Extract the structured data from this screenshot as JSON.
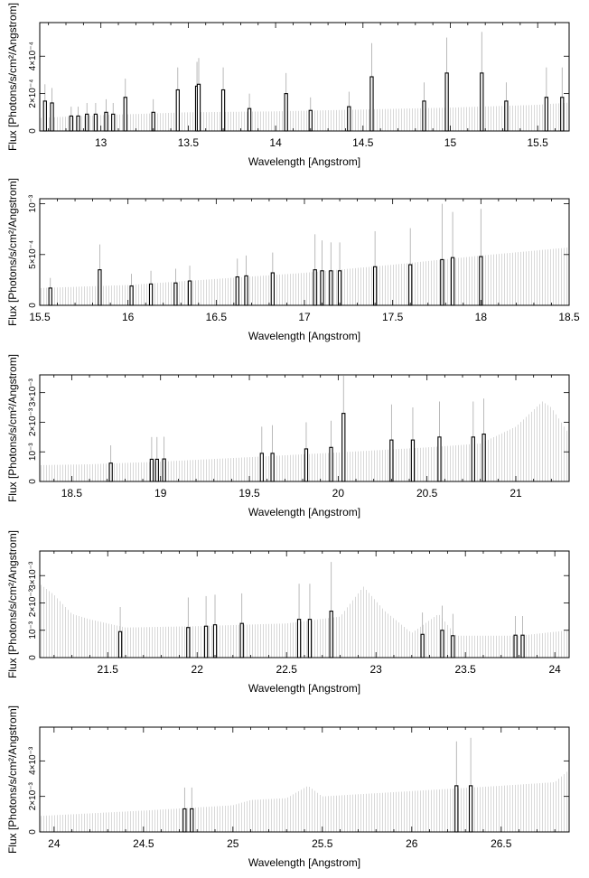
{
  "chart_data": [
    {
      "type": "bar",
      "xlabel": "Wavelength [Angstrom]",
      "ylabel": "Flux [Photons/s/cm²/Angstrom]",
      "xlim": [
        12.65,
        15.68
      ],
      "ylim": [
        0,
        0.00058
      ],
      "grid": false,
      "xticks": [
        {
          "v": 13,
          "label": "13"
        },
        {
          "v": 13.5,
          "label": "13.5"
        },
        {
          "v": 14,
          "label": "14"
        },
        {
          "v": 14.5,
          "label": "14.5"
        },
        {
          "v": 15,
          "label": "15"
        },
        {
          "v": 15.5,
          "label": "15.5"
        }
      ],
      "yticks": [
        {
          "v": 0,
          "label": "0"
        },
        {
          "v": 0.0002,
          "label": "2×10⁻⁴"
        },
        {
          "v": 0.0004,
          "label": "4×10⁻⁴"
        }
      ],
      "continuum": [
        [
          12.65,
          7e-05
        ],
        [
          13.0,
          8.5e-05
        ],
        [
          13.5,
          0.0001
        ],
        [
          14.0,
          0.000105
        ],
        [
          14.5,
          0.000115
        ],
        [
          15.0,
          0.000125
        ],
        [
          15.5,
          0.00014
        ],
        [
          15.68,
          0.000152
        ]
      ],
      "lines": [
        {
          "x": 12.68,
          "y": 0.00016,
          "err": 9e-05
        },
        {
          "x": 12.72,
          "y": 0.00015,
          "err": 8e-05
        },
        {
          "x": 12.83,
          "y": 8e-05,
          "err": 5e-05
        },
        {
          "x": 12.87,
          "y": 8e-05,
          "err": 5e-05
        },
        {
          "x": 12.92,
          "y": 9e-05,
          "err": 6e-05
        },
        {
          "x": 12.97,
          "y": 9e-05,
          "err": 6e-05
        },
        {
          "x": 13.03,
          "y": 0.0001,
          "err": 7e-05
        },
        {
          "x": 13.07,
          "y": 9e-05,
          "err": 6e-05
        },
        {
          "x": 13.14,
          "y": 0.00018,
          "err": 0.0001
        },
        {
          "x": 13.3,
          "y": 0.0001,
          "err": 7e-05
        },
        {
          "x": 13.44,
          "y": 0.00022,
          "err": 0.00012
        },
        {
          "x": 13.55,
          "y": 0.00024,
          "err": 0.00013
        },
        {
          "x": 13.56,
          "y": 0.00025,
          "err": 0.00014
        },
        {
          "x": 13.7,
          "y": 0.00022,
          "err": 0.00012
        },
        {
          "x": 13.85,
          "y": 0.00012,
          "err": 8e-05
        },
        {
          "x": 14.06,
          "y": 0.0002,
          "err": 0.00011
        },
        {
          "x": 14.2,
          "y": 0.00011,
          "err": 7e-05
        },
        {
          "x": 14.42,
          "y": 0.00013,
          "err": 8e-05
        },
        {
          "x": 14.55,
          "y": 0.00029,
          "err": 0.00018
        },
        {
          "x": 14.85,
          "y": 0.00016,
          "err": 0.0001
        },
        {
          "x": 14.98,
          "y": 0.00031,
          "err": 0.00019
        },
        {
          "x": 15.18,
          "y": 0.00031,
          "err": 0.00022
        },
        {
          "x": 15.32,
          "y": 0.00016,
          "err": 0.0001
        },
        {
          "x": 15.55,
          "y": 0.00018,
          "err": 0.00016
        },
        {
          "x": 15.64,
          "y": 0.00018,
          "err": 0.00016
        }
      ]
    },
    {
      "type": "bar",
      "xlabel": "Wavelength [Angstrom]",
      "ylabel": "Flux [Photons/s/cm²/Angstrom]",
      "xlim": [
        15.5,
        18.5
      ],
      "ylim": [
        0,
        0.00105
      ],
      "grid": false,
      "xticks": [
        {
          "v": 15.5,
          "label": "15.5"
        },
        {
          "v": 16,
          "label": "16"
        },
        {
          "v": 16.5,
          "label": "16.5"
        },
        {
          "v": 17,
          "label": "17"
        },
        {
          "v": 17.5,
          "label": "17.5"
        },
        {
          "v": 18,
          "label": "18"
        },
        {
          "v": 18.5,
          "label": "18.5"
        }
      ],
      "yticks": [
        {
          "v": 0,
          "label": "0"
        },
        {
          "v": 0.0005,
          "label": "5×10⁻⁴"
        },
        {
          "v": 0.001,
          "label": "10⁻³"
        }
      ],
      "continuum": [
        [
          15.5,
          0.00017
        ],
        [
          16.0,
          0.0002
        ],
        [
          16.5,
          0.00026
        ],
        [
          17.0,
          0.00032
        ],
        [
          17.5,
          0.0004
        ],
        [
          18.0,
          0.00049
        ],
        [
          18.5,
          0.00057
        ]
      ],
      "lines": [
        {
          "x": 15.56,
          "y": 0.00017,
          "err": 0.0001
        },
        {
          "x": 15.84,
          "y": 0.00035,
          "err": 0.00025
        },
        {
          "x": 16.02,
          "y": 0.00019,
          "err": 0.00012
        },
        {
          "x": 16.13,
          "y": 0.00021,
          "err": 0.00013
        },
        {
          "x": 16.27,
          "y": 0.00022,
          "err": 0.00014
        },
        {
          "x": 16.35,
          "y": 0.00024,
          "err": 0.00015
        },
        {
          "x": 16.62,
          "y": 0.00028,
          "err": 0.00018
        },
        {
          "x": 16.67,
          "y": 0.00029,
          "err": 0.0002
        },
        {
          "x": 16.82,
          "y": 0.00032,
          "err": 0.0002
        },
        {
          "x": 17.06,
          "y": 0.00035,
          "err": 0.00035
        },
        {
          "x": 17.1,
          "y": 0.00034,
          "err": 0.0003
        },
        {
          "x": 17.15,
          "y": 0.00034,
          "err": 0.00028
        },
        {
          "x": 17.2,
          "y": 0.00034,
          "err": 0.00028
        },
        {
          "x": 17.4,
          "y": 0.00038,
          "err": 0.00035
        },
        {
          "x": 17.6,
          "y": 0.0004,
          "err": 0.00036
        },
        {
          "x": 17.78,
          "y": 0.00045,
          "err": 0.00055
        },
        {
          "x": 17.84,
          "y": 0.00047,
          "err": 0.00045
        },
        {
          "x": 18.0,
          "y": 0.00048,
          "err": 0.00047
        }
      ]
    },
    {
      "type": "bar",
      "xlabel": "Wavelength [Angstrom]",
      "ylabel": "Flux [Photons/s/cm²/Angstrom]",
      "xlim": [
        18.32,
        21.3
      ],
      "ylim": [
        0,
        0.0036
      ],
      "grid": false,
      "xticks": [
        {
          "v": 18.5,
          "label": "18.5"
        },
        {
          "v": 19,
          "label": "19"
        },
        {
          "v": 19.5,
          "label": "19.5"
        },
        {
          "v": 20,
          "label": "20"
        },
        {
          "v": 20.5,
          "label": "20.5"
        },
        {
          "v": 21,
          "label": "21"
        }
      ],
      "yticks": [
        {
          "v": 0,
          "label": "0"
        },
        {
          "v": 0.001,
          "label": "10⁻³"
        },
        {
          "v": 0.002,
          "label": "2×10⁻³"
        },
        {
          "v": 0.003,
          "label": "3×10⁻³"
        }
      ],
      "continuum": [
        [
          18.32,
          0.00055
        ],
        [
          18.6,
          0.00058
        ],
        [
          19.0,
          0.00067
        ],
        [
          19.5,
          0.00082
        ],
        [
          20.0,
          0.00098
        ],
        [
          20.5,
          0.00115
        ],
        [
          20.8,
          0.00128
        ],
        [
          21.0,
          0.00185
        ],
        [
          21.15,
          0.0027
        ],
        [
          21.2,
          0.0025
        ],
        [
          21.3,
          0.0016
        ]
      ],
      "lines": [
        {
          "x": 18.72,
          "y": 0.00062,
          "err": 0.0006
        },
        {
          "x": 18.95,
          "y": 0.00075,
          "err": 0.00075
        },
        {
          "x": 18.98,
          "y": 0.00075,
          "err": 0.00075
        },
        {
          "x": 19.02,
          "y": 0.00076,
          "err": 0.00075
        },
        {
          "x": 19.57,
          "y": 0.00095,
          "err": 0.0009
        },
        {
          "x": 19.63,
          "y": 0.00095,
          "err": 0.00095
        },
        {
          "x": 19.82,
          "y": 0.0011,
          "err": 0.0009
        },
        {
          "x": 19.96,
          "y": 0.00115,
          "err": 0.0009
        },
        {
          "x": 20.03,
          "y": 0.0023,
          "err": 0.0013
        },
        {
          "x": 20.3,
          "y": 0.0014,
          "err": 0.0012
        },
        {
          "x": 20.42,
          "y": 0.0014,
          "err": 0.0011
        },
        {
          "x": 20.57,
          "y": 0.0015,
          "err": 0.0012
        },
        {
          "x": 20.76,
          "y": 0.0015,
          "err": 0.0012
        },
        {
          "x": 20.82,
          "y": 0.0016,
          "err": 0.0012
        }
      ]
    },
    {
      "type": "bar",
      "xlabel": "Wavelength [Angstrom]",
      "ylabel": "Flux [Photons/s/cm²/Angstrom]",
      "xlim": [
        21.12,
        24.08
      ],
      "ylim": [
        0,
        0.0039
      ],
      "grid": false,
      "xticks": [
        {
          "v": 21.5,
          "label": "21.5"
        },
        {
          "v": 22,
          "label": "22"
        },
        {
          "v": 22.5,
          "label": "22.5"
        },
        {
          "v": 23,
          "label": "23"
        },
        {
          "v": 23.5,
          "label": "23.5"
        },
        {
          "v": 24,
          "label": "24"
        }
      ],
      "yticks": [
        {
          "v": 0,
          "label": "0"
        },
        {
          "v": 0.001,
          "label": "10⁻³"
        },
        {
          "v": 0.002,
          "label": "2×10⁻³"
        },
        {
          "v": 0.003,
          "label": "3×10⁻³"
        }
      ],
      "continuum": [
        [
          21.12,
          0.0027
        ],
        [
          21.2,
          0.0023
        ],
        [
          21.3,
          0.0016
        ],
        [
          21.4,
          0.0014
        ],
        [
          21.6,
          0.0011
        ],
        [
          22.0,
          0.00115
        ],
        [
          22.5,
          0.00125
        ],
        [
          22.8,
          0.0015
        ],
        [
          22.93,
          0.0026
        ],
        [
          23.05,
          0.0017
        ],
        [
          23.2,
          0.0009
        ],
        [
          23.35,
          0.0016
        ],
        [
          23.45,
          0.0008
        ],
        [
          23.8,
          0.0008
        ],
        [
          24.08,
          0.001
        ]
      ],
      "lines": [
        {
          "x": 21.57,
          "y": 0.00095,
          "err": 0.0009
        },
        {
          "x": 21.95,
          "y": 0.0011,
          "err": 0.0011
        },
        {
          "x": 22.05,
          "y": 0.00115,
          "err": 0.0011
        },
        {
          "x": 22.1,
          "y": 0.0012,
          "err": 0.0011
        },
        {
          "x": 22.25,
          "y": 0.00125,
          "err": 0.0011
        },
        {
          "x": 22.57,
          "y": 0.0014,
          "err": 0.0013
        },
        {
          "x": 22.63,
          "y": 0.0014,
          "err": 0.0013
        },
        {
          "x": 22.75,
          "y": 0.0017,
          "err": 0.0018
        },
        {
          "x": 23.26,
          "y": 0.00085,
          "err": 0.0008
        },
        {
          "x": 23.37,
          "y": 0.001,
          "err": 0.0009
        },
        {
          "x": 23.43,
          "y": 0.0008,
          "err": 0.0008
        },
        {
          "x": 23.78,
          "y": 0.00082,
          "err": 0.0007
        },
        {
          "x": 23.82,
          "y": 0.00082,
          "err": 0.0007
        }
      ]
    },
    {
      "type": "bar",
      "xlabel": "Wavelength [Angstrom]",
      "ylabel": "Flux [Photons/s/cm²/Angstrom]",
      "xlim": [
        23.92,
        26.88
      ],
      "ylim": [
        0,
        0.0059
      ],
      "grid": false,
      "xticks": [
        {
          "v": 24,
          "label": "24"
        },
        {
          "v": 24.5,
          "label": "24.5"
        },
        {
          "v": 25,
          "label": "25"
        },
        {
          "v": 25.5,
          "label": "25.5"
        },
        {
          "v": 26,
          "label": "26"
        },
        {
          "v": 26.5,
          "label": "26.5"
        }
      ],
      "yticks": [
        {
          "v": 0,
          "label": "0"
        },
        {
          "v": 0.002,
          "label": "2×10⁻³"
        },
        {
          "v": 0.004,
          "label": "4×10⁻³"
        }
      ],
      "continuum": [
        [
          23.92,
          0.0009
        ],
        [
          24.5,
          0.0012
        ],
        [
          25.0,
          0.0015
        ],
        [
          25.1,
          0.0018
        ],
        [
          25.3,
          0.0019
        ],
        [
          25.42,
          0.0026
        ],
        [
          25.5,
          0.002
        ],
        [
          26.0,
          0.0023
        ],
        [
          26.5,
          0.0026
        ],
        [
          26.8,
          0.0028
        ],
        [
          26.88,
          0.0035
        ]
      ],
      "lines": [
        {
          "x": 24.73,
          "y": 0.0013,
          "err": 0.0012
        },
        {
          "x": 24.77,
          "y": 0.0013,
          "err": 0.0012
        },
        {
          "x": 26.25,
          "y": 0.0026,
          "err": 0.0025
        },
        {
          "x": 26.33,
          "y": 0.0026,
          "err": 0.0027
        }
      ]
    }
  ]
}
